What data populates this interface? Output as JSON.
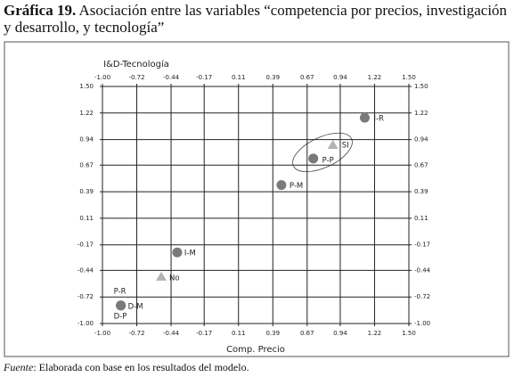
{
  "header": {
    "number": "Gráfica 19.",
    "text": "Asociación entre las variables “competencia por precios, investigación y desarrollo, y tecnología”"
  },
  "chart_data": {
    "type": "scatter",
    "x_label": "Comp. Precio",
    "y_label": "I&D-Tecnología",
    "xlim": [
      -1,
      1.5
    ],
    "ylim": [
      -1,
      1.5
    ],
    "xticks": [
      {
        "value": -1,
        "label": "-1.00"
      },
      {
        "value": -0.72,
        "label": "-0.72"
      },
      {
        "value": -0.44,
        "label": "-0.44"
      },
      {
        "value": -0.17,
        "label": "-0.17"
      },
      {
        "value": 0.11,
        "label": "0.11"
      },
      {
        "value": 0.39,
        "label": "0.39"
      },
      {
        "value": 0.67,
        "label": "0.67"
      },
      {
        "value": 0.94,
        "label": "0.94"
      },
      {
        "value": 1.22,
        "label": "1.22"
      },
      {
        "value": 1.5,
        "label": "1.50"
      }
    ],
    "yticks": [
      {
        "value": -1,
        "label": "-1.00"
      },
      {
        "value": -0.72,
        "label": "-0.72"
      },
      {
        "value": -0.44,
        "label": "-0.44"
      },
      {
        "value": -0.17,
        "label": "-0.17"
      },
      {
        "value": 0.11,
        "label": "0.11"
      },
      {
        "value": 0.39,
        "label": "0.39"
      },
      {
        "value": 0.67,
        "label": "0.67"
      },
      {
        "value": 0.94,
        "label": "0.94"
      },
      {
        "value": 1.22,
        "label": "1.22"
      },
      {
        "value": 1.5,
        "label": "1.50"
      }
    ],
    "grid": true,
    "points": [
      {
        "label": "I-R",
        "x": 1.14,
        "y": 1.17,
        "marker": "circle",
        "color": "#7a7a7a"
      },
      {
        "label": "SI",
        "x": 0.88,
        "y": 0.88,
        "marker": "triangle",
        "color": "#b3b3b3"
      },
      {
        "label": "P-P",
        "x": 0.72,
        "y": 0.74,
        "marker": "circle",
        "color": "#7a7a7a"
      },
      {
        "label": "P-M",
        "x": 0.46,
        "y": 0.46,
        "marker": "circle",
        "color": "#7a7a7a"
      },
      {
        "label": "I-M",
        "x": -0.39,
        "y": -0.25,
        "marker": "circle",
        "color": "#7a7a7a"
      },
      {
        "label": "No",
        "x": -0.52,
        "y": -0.51,
        "marker": "triangle",
        "color": "#b3b3b3"
      },
      {
        "label": "P-R",
        "x": -0.85,
        "y": -0.81,
        "marker": "circle",
        "color": "#7a7a7a"
      },
      {
        "label": "D-M",
        "x": -0.85,
        "y": -0.81,
        "marker": "circle",
        "color": "#7a7a7a"
      },
      {
        "label": "D-P",
        "x": -0.85,
        "y": -0.81,
        "marker": "circle",
        "color": "#7a7a7a"
      }
    ]
  },
  "footer": {
    "source_label": "Fuente",
    "text": ": Elaborada con base en los resultados del modelo."
  }
}
